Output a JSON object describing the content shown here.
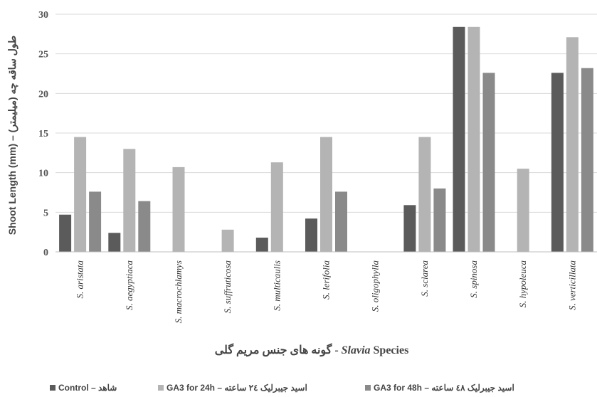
{
  "chart_data": {
    "type": "bar",
    "ylabel": "Shoot Length (mm) – طول ساقه چه (میلیمتر)",
    "xlabel_rtl": "گونه های جنس مریم گلی",
    "xlabel_sep": " - ",
    "xlabel_latin": "Species",
    "xlabel_italic": "Slavia",
    "ylim": [
      0,
      30
    ],
    "yticks": [
      "0",
      "5",
      "10",
      "15",
      "20",
      "25",
      "30"
    ],
    "grid": true,
    "legend_position": "bottom",
    "categories": [
      "S. aristata",
      "S. aegyptiaca",
      "S. macrochlamys",
      "S. suffruticosa",
      "S. multicaulis",
      "S. lerifolia",
      "S. oligophylla",
      "S. sclarea",
      "S. spinosa",
      "S. hypoleuca",
      "S. verticillata"
    ],
    "series": [
      {
        "name": "Control – شاهد",
        "color": "#5b5b5b",
        "values": [
          4.7,
          2.4,
          0,
          0,
          1.8,
          4.2,
          0,
          5.9,
          28.4,
          0,
          22.6
        ]
      },
      {
        "name": "GA3 for 24h – اسید جیبرلیک ۲٤ ساعته",
        "color": "#b4b4b4",
        "values": [
          14.5,
          13.0,
          10.7,
          2.8,
          11.3,
          14.5,
          0,
          14.5,
          28.4,
          10.5,
          27.1
        ]
      },
      {
        "name": "GA3 for 48h – اسید جیبرلیک ٤٨ ساعته",
        "color": "#8a8a8a",
        "values": [
          7.6,
          6.4,
          0,
          0,
          0,
          7.6,
          0,
          8.0,
          22.6,
          0,
          23.2
        ]
      }
    ]
  }
}
